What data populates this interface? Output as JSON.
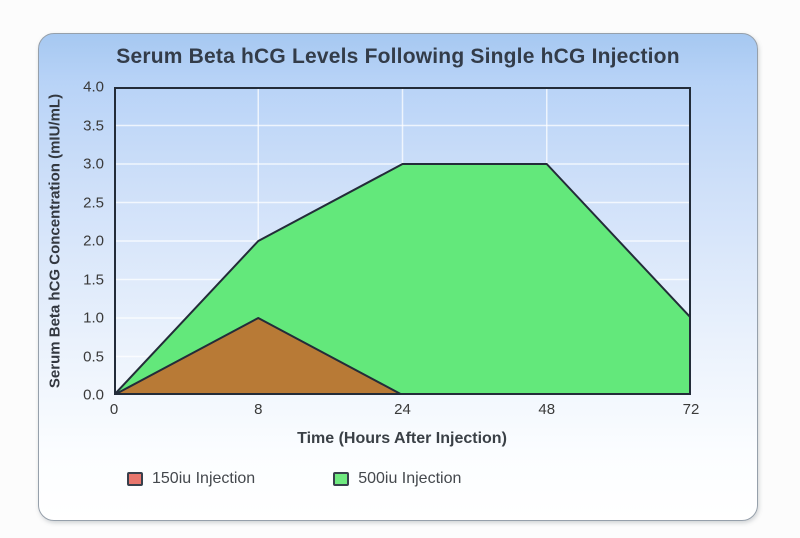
{
  "card": {
    "background_top": "#a6c8f1",
    "background_bottom": "#ffffff",
    "border_color": "#96a0ab"
  },
  "chart_data": {
    "type": "area",
    "title": "Serum Beta hCG Levels Following Single hCG Injection",
    "xlabel": "Time (Hours After Injection)",
    "ylabel": "Serum Beta hCG Concentration (mIU/mL)",
    "categories": [
      "0",
      "8",
      "24",
      "48",
      "72"
    ],
    "x_values": [
      0,
      8,
      24,
      48,
      72
    ],
    "x_spacing": "equal",
    "series": [
      {
        "name": "150iu Injection",
        "values": [
          0,
          1.0,
          0,
          0,
          0
        ],
        "fill": "#b87a36",
        "legend_swatch": "#e8766d",
        "stroke": "#232c39"
      },
      {
        "name": "500iu Injection",
        "values": [
          0,
          2.0,
          3.0,
          3.0,
          1.0
        ],
        "fill": "#63e87b",
        "legend_swatch": "#6fe97f",
        "stroke": "#232c39"
      }
    ],
    "draw_order": [
      1,
      0
    ],
    "ylim": [
      0,
      4.0
    ],
    "ytick_step": 0.5,
    "yticks": [
      "4.0",
      "3.5",
      "3.0",
      "2.5",
      "2.0",
      "1.5",
      "1.0",
      "0.5",
      "0.0"
    ],
    "grid": true,
    "gridline_color": "rgba(255,255,255,0.72)",
    "plot_border_color": "#232c39",
    "legend_position": "bottom"
  }
}
